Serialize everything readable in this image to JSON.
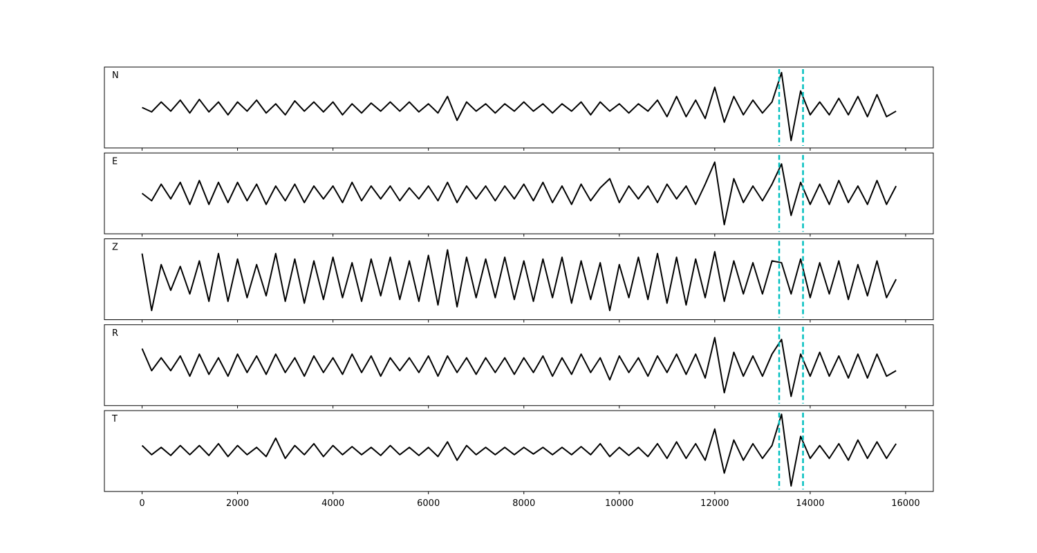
{
  "chart_data": {
    "type": "line",
    "x": [
      0,
      200,
      400,
      600,
      800,
      1000,
      1200,
      1400,
      1600,
      1800,
      2000,
      2200,
      2400,
      2600,
      2800,
      3000,
      3200,
      3400,
      3600,
      3800,
      4000,
      4200,
      4400,
      4600,
      4800,
      5000,
      5200,
      5400,
      5600,
      5800,
      6000,
      6200,
      6400,
      6600,
      6800,
      7000,
      7200,
      7400,
      7600,
      7800,
      8000,
      8200,
      8400,
      8600,
      8800,
      9000,
      9200,
      9400,
      9600,
      9800,
      10000,
      10200,
      10400,
      10600,
      10800,
      11000,
      11200,
      11400,
      11600,
      11800,
      12000,
      12200,
      12400,
      12600,
      12800,
      13000,
      13200,
      13400,
      13600,
      13800,
      14000,
      14200,
      14400,
      14600,
      14800,
      15000,
      15200,
      15400,
      15600,
      15800
    ],
    "series": [
      {
        "name": "N",
        "color": "#000000",
        "values": [
          0,
          -0.12,
          0.15,
          -0.1,
          0.2,
          -0.15,
          0.22,
          -0.12,
          0.15,
          -0.2,
          0.15,
          -0.1,
          0.2,
          -0.15,
          0.1,
          -0.2,
          0.18,
          -0.1,
          0.15,
          -0.12,
          0.15,
          -0.2,
          0.1,
          -0.15,
          0.12,
          -0.1,
          0.15,
          -0.1,
          0.15,
          -0.12,
          0.1,
          -0.15,
          0.3,
          -0.35,
          0.15,
          -0.1,
          0.1,
          -0.15,
          0.1,
          -0.1,
          0.15,
          -0.1,
          0.1,
          -0.15,
          0.1,
          -0.1,
          0.15,
          -0.2,
          0.15,
          -0.1,
          0.1,
          -0.15,
          0.1,
          -0.1,
          0.2,
          -0.25,
          0.3,
          -0.25,
          0.2,
          -0.3,
          0.55,
          -0.4,
          0.3,
          -0.2,
          0.2,
          -0.15,
          0.15,
          0.95,
          -0.9,
          0.45,
          -0.2,
          0.15,
          -0.2,
          0.25,
          -0.2,
          0.3,
          -0.25,
          0.35,
          -0.25,
          -0.1
        ]
      },
      {
        "name": "E",
        "color": "#000000",
        "values": [
          0,
          -0.2,
          0.25,
          -0.15,
          0.3,
          -0.3,
          0.35,
          -0.3,
          0.3,
          -0.25,
          0.3,
          -0.2,
          0.25,
          -0.3,
          0.2,
          -0.2,
          0.25,
          -0.25,
          0.2,
          -0.15,
          0.2,
          -0.25,
          0.3,
          -0.2,
          0.2,
          -0.15,
          0.2,
          -0.2,
          0.15,
          -0.15,
          0.2,
          -0.2,
          0.3,
          -0.25,
          0.2,
          -0.15,
          0.2,
          -0.2,
          0.2,
          -0.15,
          0.25,
          -0.2,
          0.3,
          -0.25,
          0.2,
          -0.3,
          0.25,
          -0.2,
          0.15,
          0.4,
          -0.25,
          0.2,
          -0.15,
          0.2,
          -0.25,
          0.25,
          -0.15,
          0.2,
          -0.3,
          0.25,
          0.85,
          -0.85,
          0.4,
          -0.25,
          0.2,
          -0.2,
          0.25,
          0.8,
          -0.6,
          0.3,
          -0.3,
          0.25,
          -0.3,
          0.35,
          -0.25,
          0.2,
          -0.3,
          0.35,
          -0.3,
          0.2
        ]
      },
      {
        "name": "Z",
        "color": "#000000",
        "values": [
          0.7,
          -0.85,
          0.4,
          -0.3,
          0.35,
          -0.4,
          0.5,
          -0.6,
          0.7,
          -0.6,
          0.55,
          -0.5,
          0.4,
          -0.45,
          0.7,
          -0.6,
          0.55,
          -0.65,
          0.5,
          -0.55,
          0.6,
          -0.5,
          0.45,
          -0.6,
          0.55,
          -0.45,
          0.6,
          -0.55,
          0.5,
          -0.6,
          0.65,
          -0.7,
          0.8,
          -0.75,
          0.6,
          -0.5,
          0.55,
          -0.5,
          0.6,
          -0.55,
          0.5,
          -0.6,
          0.55,
          -0.5,
          0.6,
          -0.65,
          0.5,
          -0.55,
          0.45,
          -0.85,
          0.4,
          -0.5,
          0.6,
          -0.55,
          0.7,
          -0.65,
          0.6,
          -0.7,
          0.55,
          -0.5,
          0.75,
          -0.6,
          0.5,
          -0.4,
          0.45,
          -0.4,
          0.5,
          0.45,
          -0.4,
          0.55,
          -0.5,
          0.45,
          -0.4,
          0.5,
          -0.55,
          0.4,
          -0.45,
          0.5,
          -0.5,
          0
        ]
      },
      {
        "name": "R",
        "color": "#000000",
        "values": [
          0.45,
          -0.15,
          0.2,
          -0.15,
          0.25,
          -0.3,
          0.3,
          -0.25,
          0.2,
          -0.3,
          0.3,
          -0.2,
          0.25,
          -0.25,
          0.3,
          -0.2,
          0.2,
          -0.3,
          0.25,
          -0.2,
          0.2,
          -0.25,
          0.3,
          -0.2,
          0.25,
          -0.3,
          0.2,
          -0.15,
          0.2,
          -0.2,
          0.25,
          -0.3,
          0.25,
          -0.2,
          0.2,
          -0.25,
          0.2,
          -0.2,
          0.2,
          -0.25,
          0.2,
          -0.2,
          0.25,
          -0.3,
          0.2,
          -0.25,
          0.3,
          -0.2,
          0.2,
          -0.4,
          0.25,
          -0.2,
          0.2,
          -0.3,
          0.25,
          -0.2,
          0.3,
          -0.25,
          0.3,
          -0.35,
          0.75,
          -0.75,
          0.35,
          -0.3,
          0.25,
          -0.3,
          0.3,
          0.7,
          -0.85,
          0.3,
          -0.3,
          0.35,
          -0.3,
          0.25,
          -0.35,
          0.3,
          -0.35,
          0.3,
          -0.3,
          -0.15
        ]
      },
      {
        "name": "T",
        "color": "#000000",
        "values": [
          0.15,
          -0.1,
          0.1,
          -0.12,
          0.15,
          -0.1,
          0.15,
          -0.12,
          0.2,
          -0.15,
          0.15,
          -0.1,
          0.1,
          -0.15,
          0.35,
          -0.2,
          0.15,
          -0.1,
          0.2,
          -0.15,
          0.15,
          -0.1,
          0.12,
          -0.1,
          0.1,
          -0.12,
          0.15,
          -0.1,
          0.1,
          -0.12,
          0.1,
          -0.15,
          0.25,
          -0.25,
          0.15,
          -0.1,
          0.1,
          -0.1,
          0.1,
          -0.1,
          0.1,
          -0.08,
          0.1,
          -0.1,
          0.1,
          -0.1,
          0.12,
          -0.1,
          0.2,
          -0.15,
          0.1,
          -0.12,
          0.1,
          -0.15,
          0.2,
          -0.2,
          0.25,
          -0.2,
          0.2,
          -0.25,
          0.6,
          -0.6,
          0.3,
          -0.25,
          0.2,
          -0.2,
          0.15,
          1.0,
          -0.95,
          0.4,
          -0.2,
          0.15,
          -0.2,
          0.2,
          -0.25,
          0.3,
          -0.2,
          0.25,
          -0.2,
          0.2
        ]
      }
    ],
    "markers": {
      "x": [
        13350,
        13850
      ],
      "color": "#00bfbf"
    },
    "xlim": [
      -790,
      16580
    ],
    "xticks": [
      0,
      2000,
      4000,
      6000,
      8000,
      10000,
      12000,
      14000,
      16000
    ],
    "ylim": [
      -1.1,
      1.1
    ]
  }
}
